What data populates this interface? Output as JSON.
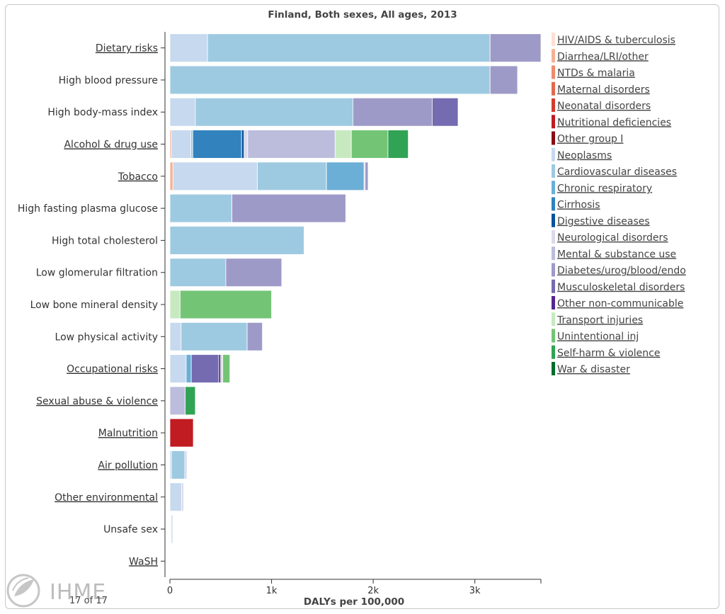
{
  "chart_data": {
    "type": "bar",
    "orientation": "horizontal",
    "stacked": true,
    "title": "Finland, Both sexes, All ages, 2013",
    "xlabel": "DALYs per 100,000",
    "xlim": [
      0,
      3650
    ],
    "xticks": [
      {
        "value": 0,
        "label": "0"
      },
      {
        "value": 1000,
        "label": "1k"
      },
      {
        "value": 2000,
        "label": "2k"
      },
      {
        "value": 3000,
        "label": "3k"
      }
    ],
    "grid": false,
    "legend_position": "right",
    "categories": [
      {
        "label": "Dietary risks",
        "linked": true
      },
      {
        "label": "High blood pressure",
        "linked": false
      },
      {
        "label": "High body-mass index",
        "linked": false
      },
      {
        "label": "Alcohol & drug use",
        "linked": true
      },
      {
        "label": "Tobacco",
        "linked": true
      },
      {
        "label": "High fasting plasma glucose",
        "linked": false
      },
      {
        "label": "High total cholesterol",
        "linked": false
      },
      {
        "label": "Low glomerular filtration",
        "linked": false
      },
      {
        "label": "Low bone mineral density",
        "linked": false
      },
      {
        "label": "Low physical activity",
        "linked": false
      },
      {
        "label": "Occupational risks",
        "linked": true
      },
      {
        "label": "Sexual abuse & violence",
        "linked": true
      },
      {
        "label": "Malnutrition",
        "linked": true
      },
      {
        "label": "Air pollution",
        "linked": true
      },
      {
        "label": "Other environmental",
        "linked": true
      },
      {
        "label": "Unsafe sex",
        "linked": false
      },
      {
        "label": "WaSH",
        "linked": true
      }
    ],
    "series": [
      {
        "name": "HIV/AIDS & tuberculosis",
        "color": "#fde0d2",
        "values": [
          0,
          0,
          0,
          0,
          0,
          0,
          0,
          0,
          0,
          0,
          0,
          0,
          0,
          0,
          0,
          8,
          0
        ]
      },
      {
        "name": "Diarrhea/LRI/other",
        "color": "#f5b195",
        "values": [
          0,
          0,
          0,
          15,
          30,
          0,
          0,
          0,
          0,
          0,
          0,
          0,
          0,
          0,
          0,
          0,
          0
        ]
      },
      {
        "name": "NTDs & malaria",
        "color": "#ee8b6f",
        "values": [
          0,
          0,
          0,
          0,
          0,
          0,
          0,
          0,
          0,
          0,
          0,
          0,
          0,
          0,
          0,
          0,
          0
        ]
      },
      {
        "name": "Maternal disorders",
        "color": "#e2694c",
        "values": [
          0,
          0,
          0,
          0,
          0,
          0,
          0,
          0,
          0,
          0,
          0,
          0,
          0,
          0,
          0,
          0,
          0
        ]
      },
      {
        "name": "Neonatal disorders",
        "color": "#d23e2e",
        "values": [
          0,
          0,
          0,
          0,
          0,
          0,
          0,
          0,
          0,
          0,
          0,
          0,
          0,
          0,
          0,
          0,
          0
        ]
      },
      {
        "name": "Nutritional deficiencies",
        "color": "#c01c22",
        "values": [
          0,
          0,
          0,
          0,
          0,
          0,
          0,
          0,
          0,
          0,
          0,
          0,
          230,
          0,
          0,
          0,
          0
        ]
      },
      {
        "name": "Other group I",
        "color": "#8c0c16",
        "values": [
          0,
          0,
          0,
          0,
          0,
          0,
          0,
          0,
          0,
          0,
          0,
          0,
          0,
          0,
          0,
          5,
          0
        ]
      },
      {
        "name": "Neoplasms",
        "color": "#c6d9ee",
        "values": [
          370,
          0,
          250,
          190,
          830,
          0,
          0,
          0,
          0,
          110,
          160,
          0,
          0,
          15,
          115,
          15,
          0
        ]
      },
      {
        "name": "Cardiovascular diseases",
        "color": "#9ecae1",
        "values": [
          2780,
          3150,
          1550,
          20,
          680,
          610,
          1320,
          550,
          0,
          650,
          0,
          0,
          0,
          130,
          0,
          0,
          0
        ]
      },
      {
        "name": "Chronic respiratory",
        "color": "#6baed6",
        "values": [
          0,
          0,
          0,
          0,
          370,
          0,
          0,
          0,
          0,
          0,
          50,
          0,
          0,
          10,
          0,
          0,
          0
        ]
      },
      {
        "name": "Cirrhosis",
        "color": "#3182bd",
        "values": [
          0,
          0,
          0,
          480,
          0,
          0,
          0,
          0,
          0,
          0,
          0,
          0,
          0,
          0,
          0,
          0,
          0
        ]
      },
      {
        "name": "Digestive diseases",
        "color": "#08519c",
        "values": [
          0,
          0,
          0,
          25,
          0,
          0,
          0,
          0,
          0,
          0,
          0,
          0,
          0,
          0,
          0,
          0,
          0
        ]
      },
      {
        "name": "Neurological disorders",
        "color": "#dadaeb",
        "values": [
          0,
          0,
          0,
          35,
          0,
          0,
          0,
          0,
          0,
          0,
          0,
          0,
          0,
          15,
          20,
          0,
          0
        ]
      },
      {
        "name": "Mental & substance use",
        "color": "#bcbddc",
        "values": [
          0,
          0,
          0,
          860,
          10,
          0,
          0,
          0,
          0,
          0,
          0,
          150,
          0,
          0,
          0,
          0,
          0
        ]
      },
      {
        "name": "Diabetes/urog/blood/endo",
        "color": "#9e9ac8",
        "values": [
          500,
          270,
          780,
          0,
          30,
          1120,
          0,
          550,
          0,
          150,
          0,
          0,
          0,
          0,
          0,
          0,
          0
        ]
      },
      {
        "name": "Musculoskeletal disorders",
        "color": "#756bb1",
        "values": [
          0,
          0,
          255,
          0,
          0,
          0,
          0,
          0,
          0,
          0,
          270,
          0,
          0,
          0,
          0,
          0,
          0
        ]
      },
      {
        "name": "Other non-communicable",
        "color": "#54278f",
        "values": [
          0,
          0,
          0,
          0,
          0,
          0,
          0,
          0,
          0,
          0,
          20,
          0,
          0,
          0,
          0,
          0,
          0
        ]
      },
      {
        "name": "Transport injuries",
        "color": "#c7e9c0",
        "values": [
          0,
          0,
          0,
          160,
          0,
          0,
          0,
          0,
          100,
          0,
          20,
          0,
          0,
          0,
          0,
          0,
          0
        ]
      },
      {
        "name": "Unintentional inj",
        "color": "#74c476",
        "values": [
          0,
          0,
          0,
          360,
          0,
          0,
          0,
          0,
          900,
          0,
          70,
          0,
          0,
          0,
          0,
          0,
          0
        ]
      },
      {
        "name": "Self-harm & violence",
        "color": "#31a354",
        "values": [
          0,
          0,
          0,
          200,
          0,
          0,
          0,
          0,
          0,
          0,
          0,
          100,
          0,
          0,
          0,
          0,
          0
        ]
      },
      {
        "name": "War & disaster",
        "color": "#006d2c",
        "values": [
          0,
          0,
          0,
          0,
          0,
          0,
          0,
          0,
          0,
          0,
          0,
          0,
          0,
          0,
          0,
          0,
          0
        ]
      }
    ]
  },
  "pager": {
    "text": "17 of 17"
  },
  "brand": {
    "name": "IHME"
  }
}
